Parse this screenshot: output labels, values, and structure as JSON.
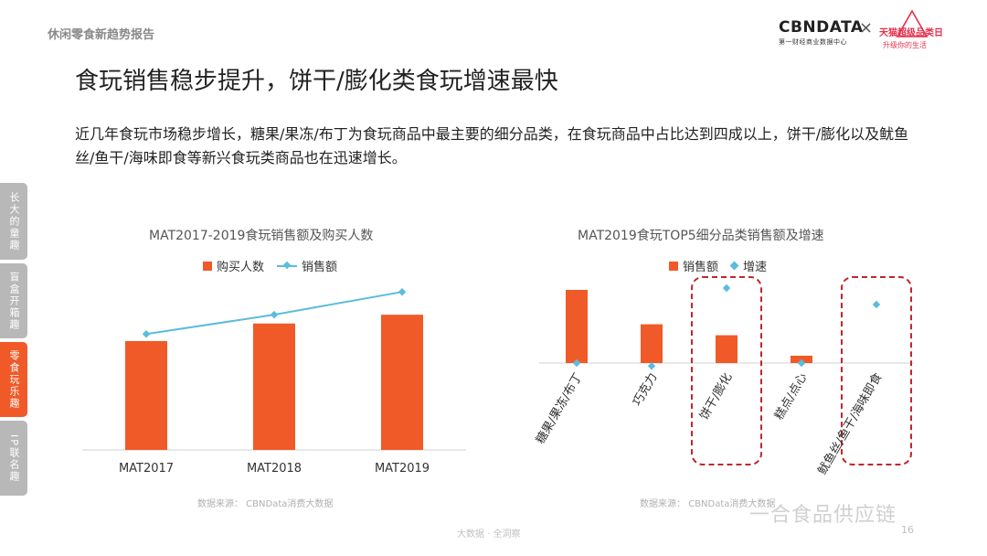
{
  "header": {
    "report_title": "休闲零食新趋势报告"
  },
  "logos": {
    "cbn_main": "CBNDATA",
    "cbn_sub": "第一财经商业数据中心",
    "separator": "×",
    "tmall_main": "天猫超级品类日",
    "tmall_sub": "升级你的生活"
  },
  "page_title": "食玩销售稳步提升，饼干/膨化类食玩增速最快",
  "description": "近几年食玩市场稳步增长，糖果/果冻/布丁为食玩商品中最主要的细分品类，在食玩商品中占比达到四成以上，饼干/膨化以及鱿鱼丝/鱼干/海味即食等新兴食玩类商品也在迅速增长。",
  "side_tabs": [
    {
      "label": "长大的童趣",
      "active": false
    },
    {
      "label": "盲盒开箱趣",
      "active": false
    },
    {
      "label": "零食玩乐趣",
      "active": true
    },
    {
      "label": "IP联名趣",
      "active": false
    }
  ],
  "colors": {
    "bar": "#f05a28",
    "line": "#5bbcdc",
    "highlight_box": "#c0262d"
  },
  "chart_data": [
    {
      "type": "bar",
      "title": "MAT2017-2019食玩销售额及购买人数",
      "categories": [
        "MAT2017",
        "MAT2018",
        "MAT2019"
      ],
      "series": [
        {
          "name": "购买人数",
          "type": "bar",
          "values": [
            0.62,
            0.72,
            0.77
          ]
        },
        {
          "name": "销售额",
          "type": "line",
          "values": [
            0.66,
            0.77,
            0.9
          ]
        }
      ],
      "ylim": [
        0,
        1
      ],
      "grid": false,
      "legend": "top-center",
      "source": "数据来源： CBNData消费大数据"
    },
    {
      "type": "bar",
      "title": "MAT2019食玩TOP5细分品类销售额及增速",
      "categories": [
        "糖果/果冻/布丁",
        "巧克力",
        "饼干/膨化",
        "糕点/点心",
        "鱿鱼丝/鱼干/海味即食"
      ],
      "series": [
        {
          "name": "销售额",
          "type": "bar",
          "values": [
            1.0,
            0.53,
            0.38,
            0.1,
            0.0
          ]
        },
        {
          "name": "增速",
          "type": "scatter",
          "values": [
            0.0,
            -0.04,
            1.0,
            0.0,
            0.78
          ]
        }
      ],
      "highlighted_categories": [
        "饼干/膨化",
        "鱿鱼丝/鱼干/海味即食"
      ],
      "grid": false,
      "legend": "top-center",
      "source": "数据来源： CBNData消费大数据"
    }
  ],
  "footer": {
    "text": "大数据 · 全洞察",
    "page": "16",
    "watermark": "一合食品供应链"
  }
}
